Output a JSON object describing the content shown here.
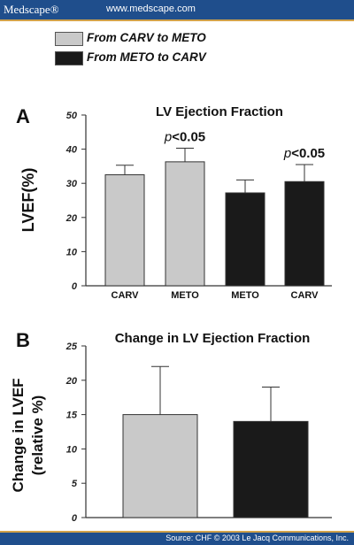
{
  "header": {
    "brand": "Medscape®",
    "url": "www.medscape.com"
  },
  "footer": {
    "source": "Source: CHF © 2003 Le Jacq Communications, Inc."
  },
  "legend": [
    {
      "label": "From CARV to METO",
      "color": "#c9c9c9"
    },
    {
      "label": "From METO to CARV",
      "color": "#1a1a1a"
    }
  ],
  "chart_data": [
    {
      "type": "bar",
      "panel": "A",
      "title": "LV Ejection Fraction",
      "ylabel": "LVEF(%)",
      "ylim": [
        0,
        50
      ],
      "yticks": [
        "0",
        "10",
        "20",
        "30",
        "40",
        "50"
      ],
      "categories": [
        "CARV",
        "METO",
        "METO",
        "CARV"
      ],
      "values": [
        32.5,
        36.3,
        27.2,
        30.5
      ],
      "errors": [
        2.8,
        4.0,
        3.8,
        5.0
      ],
      "bar_colors": [
        "#c9c9c9",
        "#c9c9c9",
        "#1a1a1a",
        "#1a1a1a"
      ],
      "annotations": [
        {
          "index": 1,
          "p": "p",
          "text": "<0.05"
        },
        {
          "index": 3,
          "p": "p",
          "text": "<0.05"
        }
      ],
      "grid": false
    },
    {
      "type": "bar",
      "panel": "B",
      "title": "Change in LV Ejection Fraction",
      "ylabel_line1": "Change in LVEF",
      "ylabel_line2": "(relative %)",
      "ylim": [
        0,
        25
      ],
      "yticks": [
        "0",
        "5",
        "10",
        "15",
        "20",
        "25"
      ],
      "values": [
        15,
        14
      ],
      "errors": [
        7,
        5
      ],
      "bar_colors": [
        "#c9c9c9",
        "#1a1a1a"
      ],
      "grid": false
    }
  ]
}
